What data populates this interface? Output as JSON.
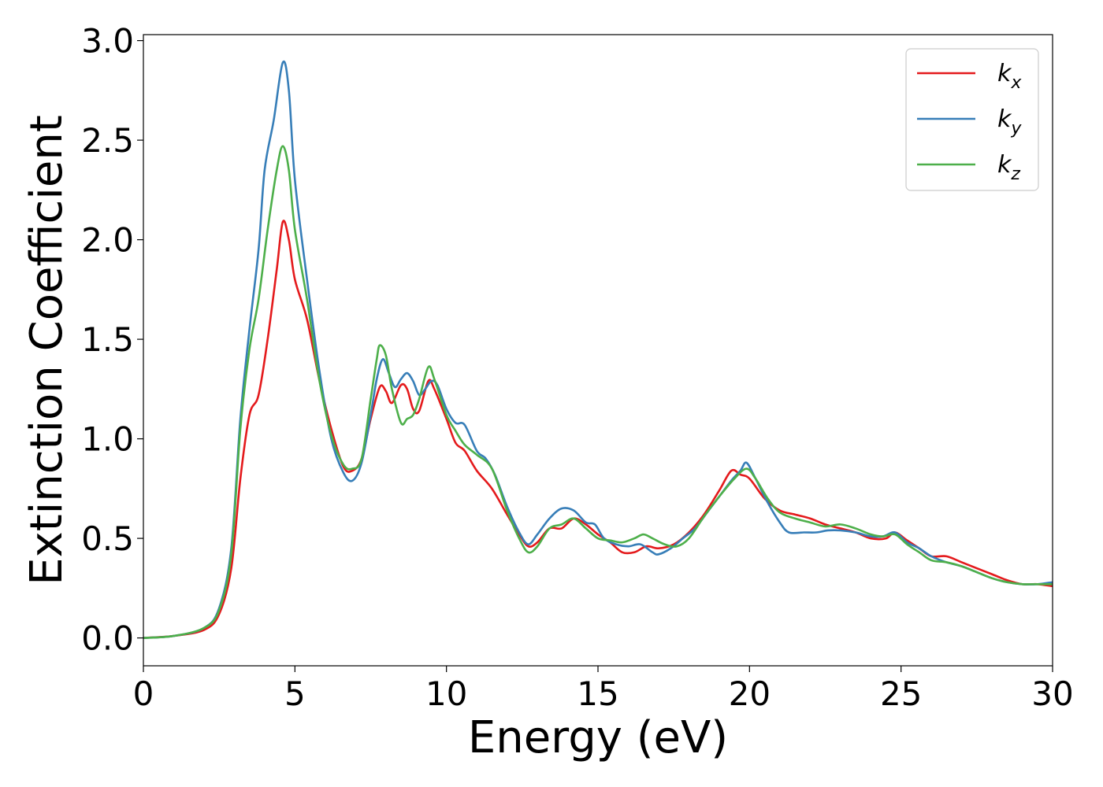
{
  "chart_data": {
    "type": "line",
    "xlabel": "Energy (eV)",
    "ylabel": "Extinction Coefficient",
    "xlim": [
      0,
      30
    ],
    "ylim": [
      -0.14,
      3.03
    ],
    "xticks": [
      0,
      5,
      10,
      15,
      20,
      25,
      30
    ],
    "xtick_labels": [
      "0",
      "5",
      "10",
      "15",
      "20",
      "25",
      "30"
    ],
    "yticks": [
      0.0,
      0.5,
      1.0,
      1.5,
      2.0,
      2.5,
      3.0
    ],
    "ytick_labels": [
      "0.0",
      "0.5",
      "1.0",
      "1.5",
      "2.0",
      "2.5",
      "3.0"
    ],
    "grid": false,
    "legend_position": "top-right",
    "series": [
      {
        "name": "k_x",
        "label_main": "k",
        "label_sub": "x",
        "color": "#e41a1c",
        "points": [
          [
            0,
            0
          ],
          [
            1,
            0.01
          ],
          [
            2,
            0.04
          ],
          [
            2.5,
            0.12
          ],
          [
            2.9,
            0.35
          ],
          [
            3.2,
            0.8
          ],
          [
            3.5,
            1.12
          ],
          [
            3.8,
            1.22
          ],
          [
            4.1,
            1.5
          ],
          [
            4.4,
            1.85
          ],
          [
            4.6,
            2.09
          ],
          [
            4.8,
            2.0
          ],
          [
            5.0,
            1.8
          ],
          [
            5.4,
            1.6
          ],
          [
            5.8,
            1.3
          ],
          [
            6.2,
            1.05
          ],
          [
            6.6,
            0.86
          ],
          [
            6.9,
            0.84
          ],
          [
            7.2,
            0.9
          ],
          [
            7.5,
            1.1
          ],
          [
            7.8,
            1.26
          ],
          [
            8.0,
            1.24
          ],
          [
            8.2,
            1.18
          ],
          [
            8.5,
            1.27
          ],
          [
            8.7,
            1.25
          ],
          [
            8.9,
            1.15
          ],
          [
            9.1,
            1.14
          ],
          [
            9.4,
            1.29
          ],
          [
            9.6,
            1.25
          ],
          [
            10.0,
            1.1
          ],
          [
            10.3,
            0.98
          ],
          [
            10.6,
            0.94
          ],
          [
            11.0,
            0.84
          ],
          [
            11.5,
            0.75
          ],
          [
            12.0,
            0.62
          ],
          [
            12.4,
            0.52
          ],
          [
            12.7,
            0.46
          ],
          [
            13.0,
            0.48
          ],
          [
            13.4,
            0.55
          ],
          [
            13.8,
            0.55
          ],
          [
            14.2,
            0.6
          ],
          [
            14.6,
            0.57
          ],
          [
            15.0,
            0.52
          ],
          [
            15.4,
            0.48
          ],
          [
            15.8,
            0.43
          ],
          [
            16.2,
            0.43
          ],
          [
            16.6,
            0.46
          ],
          [
            17.0,
            0.45
          ],
          [
            17.5,
            0.47
          ],
          [
            18.0,
            0.53
          ],
          [
            18.5,
            0.62
          ],
          [
            19.0,
            0.74
          ],
          [
            19.4,
            0.84
          ],
          [
            19.7,
            0.82
          ],
          [
            20.0,
            0.8
          ],
          [
            20.5,
            0.7
          ],
          [
            21.0,
            0.64
          ],
          [
            21.5,
            0.62
          ],
          [
            22.0,
            0.6
          ],
          [
            22.5,
            0.57
          ],
          [
            23.0,
            0.55
          ],
          [
            23.5,
            0.53
          ],
          [
            24.0,
            0.5
          ],
          [
            24.5,
            0.5
          ],
          [
            24.8,
            0.53
          ],
          [
            25.2,
            0.49
          ],
          [
            25.6,
            0.45
          ],
          [
            26.0,
            0.41
          ],
          [
            26.5,
            0.41
          ],
          [
            27.0,
            0.38
          ],
          [
            27.5,
            0.35
          ],
          [
            28.0,
            0.32
          ],
          [
            28.5,
            0.29
          ],
          [
            29.0,
            0.27
          ],
          [
            29.5,
            0.27
          ],
          [
            30,
            0.26
          ]
        ]
      },
      {
        "name": "k_y",
        "label_main": "k",
        "label_sub": "y",
        "color": "#377eb8",
        "points": [
          [
            0,
            0
          ],
          [
            1,
            0.01
          ],
          [
            2,
            0.05
          ],
          [
            2.5,
            0.15
          ],
          [
            2.9,
            0.45
          ],
          [
            3.2,
            1.1
          ],
          [
            3.5,
            1.55
          ],
          [
            3.8,
            1.95
          ],
          [
            4.0,
            2.35
          ],
          [
            4.3,
            2.6
          ],
          [
            4.6,
            2.89
          ],
          [
            4.8,
            2.75
          ],
          [
            5.0,
            2.3
          ],
          [
            5.4,
            1.8
          ],
          [
            5.8,
            1.35
          ],
          [
            6.2,
            1.0
          ],
          [
            6.6,
            0.83
          ],
          [
            6.9,
            0.79
          ],
          [
            7.2,
            0.88
          ],
          [
            7.5,
            1.12
          ],
          [
            7.7,
            1.3
          ],
          [
            7.9,
            1.4
          ],
          [
            8.1,
            1.33
          ],
          [
            8.3,
            1.26
          ],
          [
            8.5,
            1.3
          ],
          [
            8.7,
            1.33
          ],
          [
            8.9,
            1.29
          ],
          [
            9.1,
            1.22
          ],
          [
            9.3,
            1.25
          ],
          [
            9.5,
            1.29
          ],
          [
            9.7,
            1.27
          ],
          [
            10.0,
            1.15
          ],
          [
            10.3,
            1.08
          ],
          [
            10.6,
            1.07
          ],
          [
            11.0,
            0.94
          ],
          [
            11.3,
            0.9
          ],
          [
            11.6,
            0.82
          ],
          [
            12.0,
            0.66
          ],
          [
            12.4,
            0.53
          ],
          [
            12.7,
            0.47
          ],
          [
            13.0,
            0.52
          ],
          [
            13.4,
            0.6
          ],
          [
            13.8,
            0.65
          ],
          [
            14.2,
            0.64
          ],
          [
            14.6,
            0.58
          ],
          [
            14.9,
            0.57
          ],
          [
            15.2,
            0.5
          ],
          [
            15.6,
            0.47
          ],
          [
            16.0,
            0.46
          ],
          [
            16.4,
            0.47
          ],
          [
            16.8,
            0.43
          ],
          [
            17.0,
            0.42
          ],
          [
            17.4,
            0.45
          ],
          [
            17.8,
            0.5
          ],
          [
            18.2,
            0.55
          ],
          [
            18.6,
            0.63
          ],
          [
            19.0,
            0.71
          ],
          [
            19.4,
            0.79
          ],
          [
            19.7,
            0.84
          ],
          [
            19.9,
            0.88
          ],
          [
            20.2,
            0.8
          ],
          [
            20.6,
            0.68
          ],
          [
            21.0,
            0.58
          ],
          [
            21.3,
            0.53
          ],
          [
            21.8,
            0.53
          ],
          [
            22.2,
            0.53
          ],
          [
            22.6,
            0.54
          ],
          [
            23.0,
            0.54
          ],
          [
            23.5,
            0.53
          ],
          [
            24.0,
            0.51
          ],
          [
            24.4,
            0.51
          ],
          [
            24.8,
            0.53
          ],
          [
            25.2,
            0.48
          ],
          [
            25.6,
            0.45
          ],
          [
            26.0,
            0.41
          ],
          [
            26.5,
            0.38
          ],
          [
            27.0,
            0.36
          ],
          [
            27.5,
            0.33
          ],
          [
            28.0,
            0.3
          ],
          [
            28.5,
            0.28
          ],
          [
            29.0,
            0.27
          ],
          [
            29.5,
            0.27
          ],
          [
            30,
            0.28
          ]
        ]
      },
      {
        "name": "k_z",
        "label_main": "k",
        "label_sub": "z",
        "color": "#4daf4a",
        "points": [
          [
            0,
            0
          ],
          [
            1,
            0.01
          ],
          [
            2,
            0.05
          ],
          [
            2.5,
            0.14
          ],
          [
            2.9,
            0.42
          ],
          [
            3.2,
            1.05
          ],
          [
            3.5,
            1.45
          ],
          [
            3.8,
            1.7
          ],
          [
            4.1,
            2.05
          ],
          [
            4.4,
            2.35
          ],
          [
            4.6,
            2.47
          ],
          [
            4.8,
            2.35
          ],
          [
            5.0,
            2.05
          ],
          [
            5.4,
            1.7
          ],
          [
            5.8,
            1.3
          ],
          [
            6.2,
            1.02
          ],
          [
            6.6,
            0.87
          ],
          [
            6.9,
            0.85
          ],
          [
            7.2,
            0.9
          ],
          [
            7.5,
            1.2
          ],
          [
            7.7,
            1.4
          ],
          [
            7.8,
            1.47
          ],
          [
            8.0,
            1.42
          ],
          [
            8.2,
            1.25
          ],
          [
            8.5,
            1.08
          ],
          [
            8.7,
            1.1
          ],
          [
            8.9,
            1.12
          ],
          [
            9.1,
            1.2
          ],
          [
            9.4,
            1.36
          ],
          [
            9.6,
            1.3
          ],
          [
            10.0,
            1.12
          ],
          [
            10.3,
            1.04
          ],
          [
            10.6,
            0.97
          ],
          [
            11.0,
            0.92
          ],
          [
            11.5,
            0.85
          ],
          [
            12.0,
            0.64
          ],
          [
            12.4,
            0.5
          ],
          [
            12.7,
            0.43
          ],
          [
            13.0,
            0.46
          ],
          [
            13.4,
            0.55
          ],
          [
            13.8,
            0.57
          ],
          [
            14.2,
            0.6
          ],
          [
            14.6,
            0.55
          ],
          [
            15.0,
            0.5
          ],
          [
            15.4,
            0.49
          ],
          [
            15.8,
            0.48
          ],
          [
            16.2,
            0.5
          ],
          [
            16.5,
            0.52
          ],
          [
            16.8,
            0.5
          ],
          [
            17.2,
            0.47
          ],
          [
            17.6,
            0.46
          ],
          [
            18.0,
            0.5
          ],
          [
            18.5,
            0.61
          ],
          [
            19.0,
            0.71
          ],
          [
            19.5,
            0.8
          ],
          [
            19.9,
            0.85
          ],
          [
            20.2,
            0.8
          ],
          [
            20.6,
            0.7
          ],
          [
            21.0,
            0.63
          ],
          [
            21.5,
            0.6
          ],
          [
            22.0,
            0.58
          ],
          [
            22.5,
            0.56
          ],
          [
            23.0,
            0.57
          ],
          [
            23.5,
            0.55
          ],
          [
            24.0,
            0.52
          ],
          [
            24.4,
            0.51
          ],
          [
            24.8,
            0.52
          ],
          [
            25.2,
            0.47
          ],
          [
            25.6,
            0.43
          ],
          [
            26.0,
            0.39
          ],
          [
            26.5,
            0.38
          ],
          [
            27.0,
            0.36
          ],
          [
            27.5,
            0.33
          ],
          [
            28.0,
            0.3
          ],
          [
            28.5,
            0.28
          ],
          [
            29.0,
            0.27
          ],
          [
            29.5,
            0.27
          ],
          [
            30,
            0.27
          ]
        ]
      }
    ]
  }
}
